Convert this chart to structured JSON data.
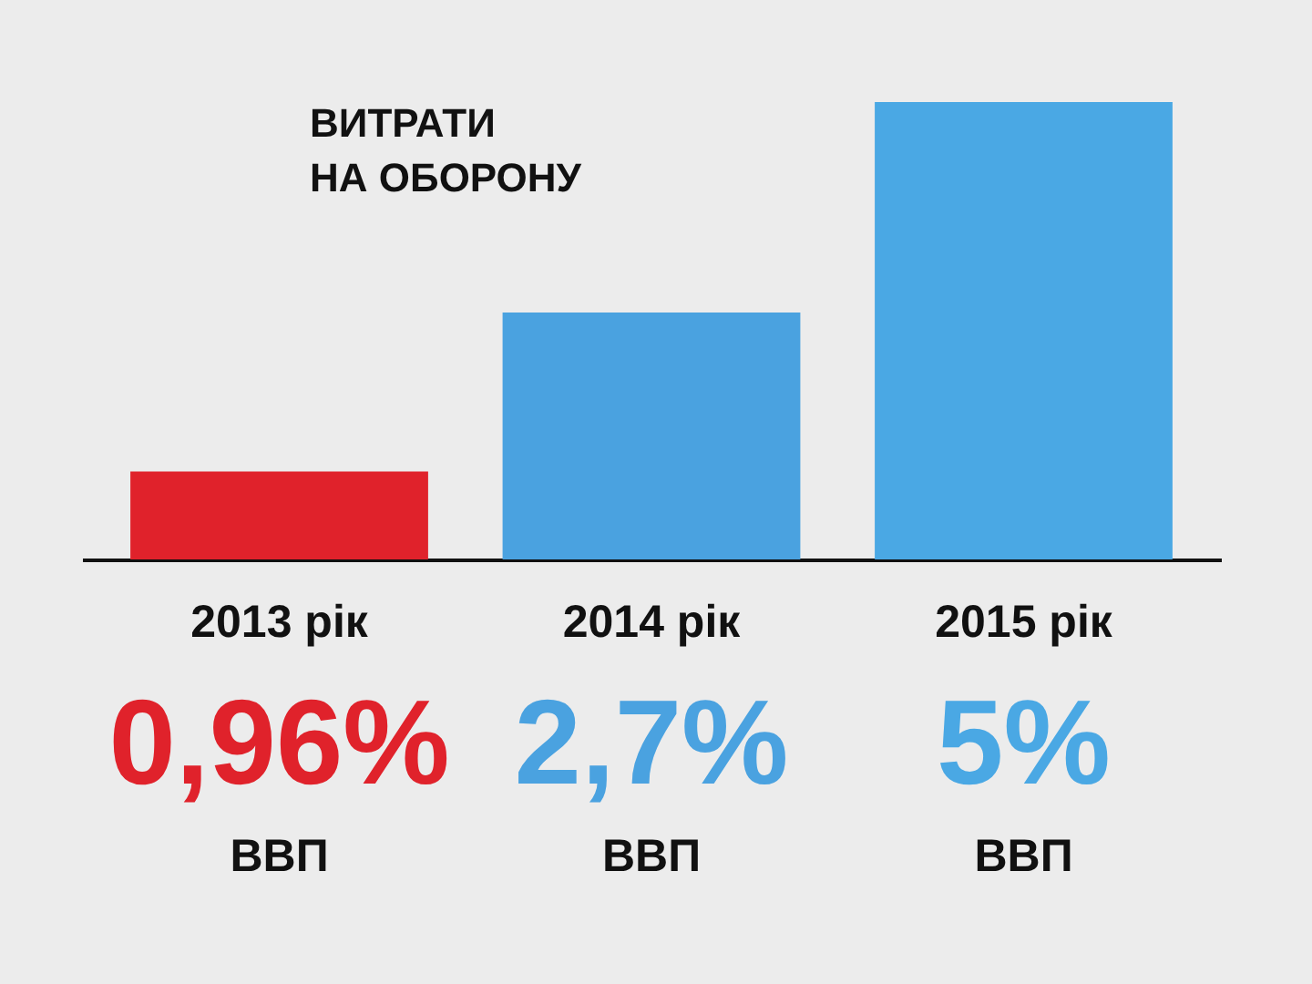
{
  "chart_data": {
    "type": "bar",
    "title": "ВИТРАТИ\nНА ОБОРОНУ",
    "categories": [
      "2013 рік",
      "2014 рік",
      "2015 рік"
    ],
    "values": [
      0.96,
      2.7,
      5
    ],
    "colors": [
      "#e0222b",
      "#4aa2e0",
      "#4aa8e4"
    ],
    "value_labels": [
      "0,96%",
      "2,7%",
      "5%"
    ],
    "annotations": [
      "ВВП",
      "ВВП",
      "ВВП"
    ]
  }
}
